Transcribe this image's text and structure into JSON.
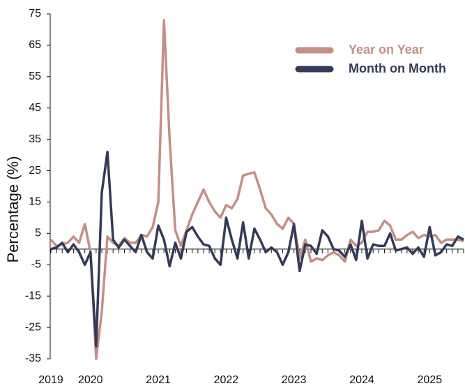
{
  "chart_data": {
    "type": "line",
    "ylabel": "Percentage (%)",
    "categories": [
      "2019",
      null,
      null,
      null,
      null,
      null,
      null,
      "2020",
      null,
      null,
      null,
      null,
      null,
      null,
      null,
      null,
      null,
      null,
      null,
      "2021",
      null,
      null,
      null,
      null,
      null,
      null,
      null,
      null,
      null,
      null,
      null,
      "2022",
      null,
      null,
      null,
      null,
      null,
      null,
      null,
      null,
      null,
      null,
      null,
      "2023",
      null,
      null,
      null,
      null,
      null,
      null,
      null,
      null,
      null,
      null,
      null,
      "2024",
      null,
      null,
      null,
      null,
      null,
      null,
      null,
      null,
      null,
      null,
      null,
      "2025",
      null,
      null,
      null,
      null,
      null,
      null
    ],
    "series": [
      {
        "name": "Year on Year",
        "color": "#c48f86",
        "values": [
          3,
          1,
          1.5,
          2,
          4,
          2,
          8,
          -1,
          -35,
          -20,
          4,
          2,
          1,
          3.5,
          2,
          2,
          4.5,
          4,
          7,
          15,
          73,
          35,
          6,
          1,
          6,
          11,
          15,
          19,
          15,
          12,
          10,
          14,
          13,
          16,
          23.5,
          24,
          24.5,
          19,
          13,
          11,
          8,
          6.5,
          10,
          8,
          -3,
          3,
          -4,
          -3,
          -3.5,
          -2,
          -1,
          -2,
          -4,
          3,
          1,
          2,
          5.5,
          5.5,
          6,
          9,
          7.5,
          3,
          3,
          4.5,
          5.5,
          3.5,
          4.5,
          4,
          4.5,
          2,
          3,
          3,
          3,
          2.5
        ]
      },
      {
        "name": "Month on Month",
        "color": "#343a58",
        "values": [
          0,
          0.5,
          2,
          -1,
          1.5,
          -1,
          -5,
          -1,
          -31,
          18,
          31,
          3,
          0.5,
          3,
          1,
          -1,
          4.5,
          -1,
          -3,
          7.5,
          3,
          -5.5,
          2,
          -3,
          5.5,
          7,
          4,
          1.5,
          1,
          -3,
          -5,
          10,
          3,
          -3,
          8.5,
          -3,
          6.5,
          3,
          -1,
          0.5,
          -1,
          -5,
          -1,
          8,
          -7,
          1.5,
          1,
          -1.5,
          6,
          4,
          0,
          -0.5,
          -2.5,
          1.5,
          -3.5,
          9,
          -3,
          1.5,
          1,
          1,
          5,
          -0.5,
          0,
          0.5,
          -1.5,
          0.5,
          -2.5,
          7,
          -2,
          -1,
          1.5,
          1,
          4,
          3
        ]
      }
    ],
    "ylim": [
      -35,
      75
    ],
    "yticks": [
      -35,
      -25,
      -15,
      -5,
      5,
      15,
      25,
      35,
      45,
      55,
      65,
      75
    ],
    "legend": "upper right"
  }
}
